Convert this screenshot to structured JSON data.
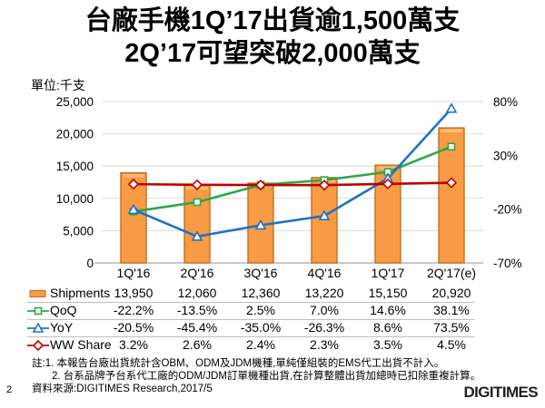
{
  "page": {
    "number": "2",
    "logo_text": "DIGITIMES"
  },
  "title": {
    "line1": "台廠手機1Q’17出貨逾1,500萬支",
    "line2": "2Q’17可望突破2,000萬支"
  },
  "unit_label": "單位:千支",
  "chart_data": {
    "type": "combo-bar-line",
    "categories": [
      "1Q'16",
      "2Q'16",
      "3Q'16",
      "4Q'16",
      "1Q'17",
      "2Q'17(e)"
    ],
    "series": [
      {
        "name": "Shipments",
        "type": "bar",
        "axis": "left",
        "marker": "bar",
        "color": "#F89B44",
        "border_color": "#C07020",
        "values": [
          13950,
          12060,
          12360,
          13220,
          15150,
          20920
        ],
        "display": [
          "13,950",
          "12,060",
          "12,360",
          "13,220",
          "15,150",
          "20,920"
        ]
      },
      {
        "name": "QoQ",
        "type": "line",
        "axis": "right",
        "marker": "square",
        "color": "#2BA84C",
        "values": [
          -22.2,
          -13.5,
          2.5,
          7.0,
          14.6,
          38.1
        ],
        "display": [
          "-22.2%",
          "-13.5%",
          "2.5%",
          "7.0%",
          "14.6%",
          "38.1%"
        ]
      },
      {
        "name": "YoY",
        "type": "line",
        "axis": "right",
        "marker": "triangle",
        "color": "#2272C3",
        "values": [
          -20.5,
          -45.4,
          -35.0,
          -26.3,
          8.6,
          73.5
        ],
        "display": [
          "-20.5%",
          "-45.4%",
          "-35.0%",
          "-26.3%",
          "8.6%",
          "73.5%"
        ]
      },
      {
        "name": "WW Share",
        "type": "line",
        "axis": "right",
        "marker": "diamond",
        "color": "#C00000",
        "values": [
          3.2,
          2.6,
          2.4,
          2.3,
          3.5,
          4.5
        ],
        "display": [
          "3.2%",
          "2.6%",
          "2.4%",
          "2.3%",
          "3.5%",
          "4.5%"
        ]
      }
    ],
    "left_axis": {
      "min": 0,
      "max": 25000,
      "tick_step": 5000,
      "tick_values": [
        0,
        5000,
        10000,
        15000,
        20000,
        25000
      ],
      "tick_labels": [
        "0",
        "5,000",
        "10,000",
        "15,000",
        "20,000",
        "25,000"
      ]
    },
    "right_axis": {
      "min": -70,
      "max": 80,
      "tick_values": [
        80,
        30,
        -20,
        -70
      ],
      "tick_labels": [
        "80%",
        "30%",
        "-20%",
        "-70%"
      ]
    },
    "grid": true,
    "grid_color": "#D9D9D9",
    "axis_line_color": "#A6A6A6"
  },
  "notes": {
    "line1": "註:1. 本報告台廠出貨統計含OBM、ODM及JDM機種,單純僅組裝的EMS代工出貨不計入。",
    "line2": "2. 台系品牌予台系代工廠的ODM/JDM訂單機種出貨,在計算整體出貨加總時已扣除重複計算。",
    "source": "資料來源:DIGITIMES Research,2017/5"
  }
}
